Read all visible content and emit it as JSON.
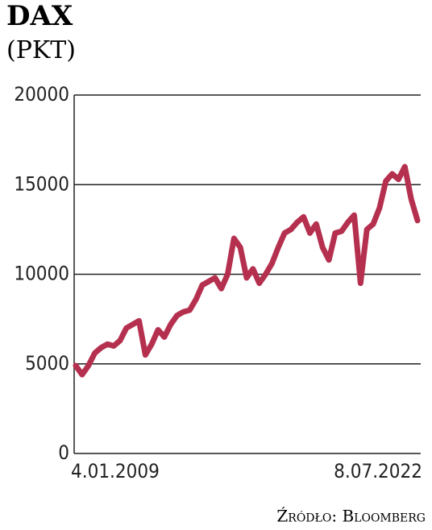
{
  "chart_data": {
    "type": "line",
    "title": "DAX",
    "subtitle": "(PKT)",
    "source": "Źródło: Bloomberg",
    "categories": [
      "4.01.2009",
      null,
      null,
      null,
      null,
      null,
      null,
      null,
      null,
      null,
      null,
      null,
      null,
      null,
      null,
      null,
      null,
      null,
      null,
      null,
      null,
      null,
      null,
      null,
      null,
      null,
      null,
      null,
      null,
      null,
      null,
      null,
      null,
      null,
      null,
      null,
      null,
      null,
      null,
      null,
      null,
      null,
      null,
      null,
      null,
      null,
      null,
      null,
      null,
      null,
      null,
      null,
      null,
      null,
      "8.07.2022"
    ],
    "series": [
      {
        "name": "DAX",
        "color": "#b5304f",
        "values": [
          4900,
          4400,
          4900,
          5600,
          5900,
          6100,
          6000,
          6300,
          7000,
          7200,
          7400,
          5500,
          6100,
          6900,
          6500,
          7200,
          7700,
          7900,
          8000,
          8600,
          9400,
          9600,
          9800,
          9200,
          10000,
          12000,
          11500,
          9800,
          10300,
          9500,
          10000,
          10600,
          11500,
          12300,
          12500,
          12900,
          13200,
          12300,
          12800,
          11500,
          10800,
          12300,
          12400,
          12900,
          13300,
          9500,
          12500,
          12800,
          13700,
          15200,
          15600,
          15300,
          16000,
          14200,
          13000
        ]
      }
    ],
    "ylim": [
      0,
      20000
    ],
    "yticks": [
      0,
      5000,
      10000,
      15000,
      20000
    ],
    "grid": true
  }
}
